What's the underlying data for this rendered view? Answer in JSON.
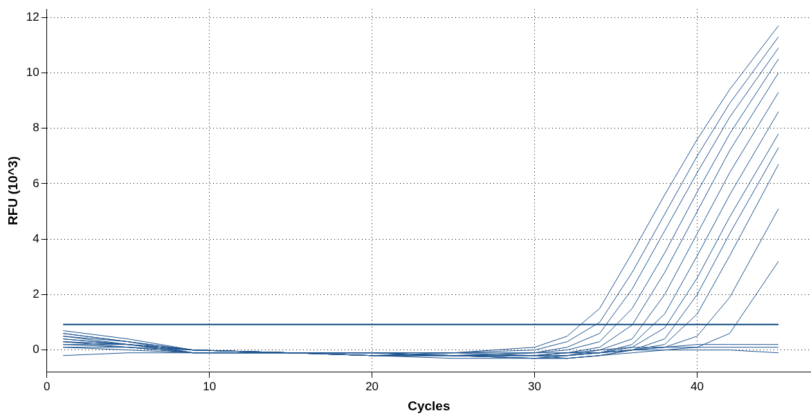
{
  "chart_data": {
    "type": "line",
    "xlabel": "Cycles",
    "ylabel": "RFU (10^3)",
    "xlim": [
      0,
      47
    ],
    "ylim": [
      -0.8,
      12.3
    ],
    "xticks": [
      0,
      10,
      20,
      30,
      40
    ],
    "yticks": [
      0,
      2,
      4,
      6,
      8,
      10,
      12
    ],
    "grid": true,
    "legend": false,
    "marker": "none",
    "line_style": "solid",
    "ref_lines": [
      {
        "axis": "y",
        "value": 0.92,
        "color": "#0e4a80"
      }
    ],
    "series": [
      {
        "color": "#1f5590",
        "x": [
          1,
          5,
          9,
          15,
          20,
          25,
          30,
          32,
          34,
          36,
          38,
          40,
          42,
          45
        ],
        "values": [
          0.7,
          0.4,
          0.0,
          -0.1,
          -0.1,
          -0.1,
          0.1,
          0.5,
          1.5,
          3.5,
          5.6,
          7.6,
          9.4,
          11.7
        ]
      },
      {
        "color": "#1f5590",
        "x": [
          1,
          5,
          9,
          15,
          20,
          25,
          30,
          32,
          34,
          36,
          38,
          40,
          42,
          45
        ],
        "values": [
          0.6,
          0.3,
          0.0,
          -0.1,
          -0.2,
          -0.1,
          0.0,
          0.3,
          1.0,
          2.8,
          4.9,
          7.0,
          8.9,
          11.3
        ]
      },
      {
        "color": "#1f5590",
        "x": [
          1,
          5,
          9,
          15,
          20,
          25,
          30,
          32,
          34,
          36,
          38,
          40,
          42,
          45
        ],
        "values": [
          0.5,
          0.3,
          -0.1,
          -0.1,
          -0.1,
          -0.2,
          -0.1,
          0.1,
          0.6,
          2.2,
          4.3,
          6.4,
          8.4,
          10.9
        ]
      },
      {
        "color": "#1f5590",
        "x": [
          1,
          5,
          9,
          15,
          20,
          25,
          30,
          32,
          34,
          36,
          38,
          40,
          42,
          45
        ],
        "values": [
          0.4,
          0.2,
          0.0,
          -0.1,
          -0.2,
          -0.2,
          -0.1,
          0.0,
          0.3,
          1.5,
          3.5,
          5.7,
          7.8,
          10.5
        ]
      },
      {
        "color": "#1f5590",
        "x": [
          1,
          5,
          9,
          15,
          20,
          25,
          30,
          32,
          34,
          36,
          38,
          40,
          42,
          45
        ],
        "values": [
          0.3,
          0.2,
          -0.1,
          -0.1,
          -0.1,
          -0.2,
          -0.2,
          -0.1,
          0.1,
          0.9,
          2.8,
          5.0,
          7.2,
          10.0
        ]
      },
      {
        "color": "#1f5590",
        "x": [
          1,
          5,
          9,
          15,
          20,
          25,
          30,
          32,
          34,
          36,
          38,
          40,
          42,
          45
        ],
        "values": [
          0.3,
          0.1,
          0.0,
          -0.1,
          -0.2,
          -0.2,
          -0.3,
          -0.2,
          0.0,
          0.4,
          2.0,
          4.2,
          6.4,
          9.3
        ]
      },
      {
        "color": "#1f5590",
        "x": [
          1,
          5,
          9,
          15,
          20,
          25,
          30,
          32,
          34,
          36,
          38,
          40,
          42,
          45
        ],
        "values": [
          0.2,
          0.1,
          -0.1,
          -0.1,
          -0.2,
          -0.3,
          -0.3,
          -0.2,
          -0.1,
          0.2,
          1.3,
          3.4,
          5.6,
          8.6
        ]
      },
      {
        "color": "#1f5590",
        "x": [
          1,
          5,
          9,
          15,
          20,
          25,
          30,
          32,
          34,
          36,
          38,
          40,
          42,
          45
        ],
        "values": [
          0.2,
          0.2,
          0.0,
          -0.1,
          -0.1,
          -0.2,
          -0.2,
          -0.2,
          -0.1,
          0.1,
          0.8,
          2.6,
          4.8,
          7.8
        ]
      },
      {
        "color": "#1f5590",
        "x": [
          1,
          5,
          9,
          15,
          20,
          25,
          30,
          32,
          34,
          36,
          38,
          40,
          42,
          45
        ],
        "values": [
          0.1,
          0.1,
          -0.1,
          -0.1,
          -0.2,
          -0.2,
          -0.3,
          -0.3,
          -0.2,
          0.0,
          0.4,
          2.0,
          4.2,
          7.3
        ]
      },
      {
        "color": "#1f5590",
        "x": [
          1,
          5,
          9,
          15,
          20,
          25,
          30,
          32,
          34,
          36,
          38,
          40,
          42,
          45
        ],
        "values": [
          0.3,
          0.2,
          0.0,
          -0.1,
          -0.2,
          -0.2,
          -0.2,
          -0.2,
          -0.1,
          0.0,
          0.2,
          1.3,
          3.4,
          6.7
        ]
      },
      {
        "color": "#1f5590",
        "x": [
          1,
          5,
          9,
          15,
          20,
          25,
          30,
          32,
          34,
          36,
          38,
          40,
          42,
          45
        ],
        "values": [
          0.5,
          0.2,
          -0.1,
          -0.1,
          -0.1,
          -0.2,
          -0.2,
          -0.1,
          -0.1,
          0.0,
          0.1,
          0.5,
          1.9,
          5.1
        ]
      },
      {
        "color": "#1f5590",
        "x": [
          1,
          5,
          9,
          15,
          20,
          25,
          30,
          32,
          34,
          36,
          38,
          40,
          42,
          45
        ],
        "values": [
          0.4,
          0.2,
          0.0,
          -0.1,
          -0.2,
          -0.1,
          -0.2,
          -0.1,
          -0.1,
          0.0,
          0.0,
          0.1,
          0.6,
          3.2
        ]
      },
      {
        "color": "#1f5590",
        "x": [
          1,
          5,
          9,
          15,
          20,
          25,
          30,
          32,
          34,
          36,
          38,
          40,
          42,
          45
        ],
        "values": [
          0.6,
          0.3,
          0.0,
          -0.1,
          -0.1,
          -0.2,
          -0.2,
          -0.3,
          -0.2,
          0.0,
          0.1,
          0.1,
          0.1,
          0.1
        ]
      },
      {
        "color": "#1f5590",
        "x": [
          1,
          5,
          9,
          15,
          20,
          25,
          30,
          32,
          34,
          36,
          38,
          40,
          42,
          45
        ],
        "values": [
          0.1,
          0.0,
          -0.1,
          -0.1,
          -0.2,
          -0.2,
          -0.3,
          -0.3,
          -0.2,
          -0.1,
          0.0,
          0.0,
          0.0,
          -0.1
        ]
      },
      {
        "color": "#1f5590",
        "x": [
          1,
          5,
          9,
          15,
          20,
          25,
          30,
          32,
          34,
          36,
          38,
          40,
          42,
          45
        ],
        "values": [
          -0.2,
          -0.1,
          -0.1,
          -0.1,
          -0.1,
          -0.1,
          -0.1,
          -0.1,
          0.0,
          0.1,
          0.1,
          0.2,
          0.2,
          0.2
        ]
      }
    ]
  }
}
